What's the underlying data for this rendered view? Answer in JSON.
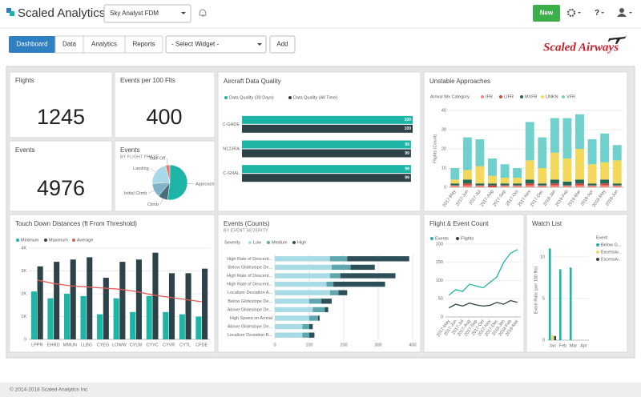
{
  "header": {
    "logo": "Scaled Analytics",
    "workspace": "Sky Analyst FDM",
    "new_button": "New",
    "help": "?"
  },
  "toolbar": {
    "tabs": [
      "Dashboard",
      "Data",
      "Analytics",
      "Reports"
    ],
    "widget_select": "- Select Widget -",
    "add_button": "Add",
    "brand": "Scaled Airways"
  },
  "kpis": [
    {
      "title": "Flights",
      "value": 1245
    },
    {
      "title": "Events per 100 Flts",
      "value": 400
    },
    {
      "title": "Events",
      "value": 4976
    }
  ],
  "charts": [
    {
      "type": "pie",
      "title": "Events",
      "subtitle": "BY FLIGHT PHASE",
      "categories": [
        "Take Off",
        "Landing",
        "Initial Climb",
        "Climb",
        "Approach"
      ],
      "values": [
        4,
        22,
        13,
        9,
        52
      ],
      "colors": [
        "#e8766d",
        "#a9d9e9",
        "#7fb3c8",
        "#4a6e7c",
        "#1fb5a6"
      ]
    },
    {
      "type": "bar",
      "orientation": "horizontal",
      "title": "Aircraft Data Quality",
      "data_labels": true,
      "categories": [
        "C-GADE",
        "N123RA",
        "C-GNAL"
      ],
      "series": [
        {
          "name": "Data Quality (30 Days)",
          "color": "#1db5a5",
          "values": [
            100,
            99,
            99
          ]
        },
        {
          "name": "Data Quality (All Time)",
          "color": "#2d4249",
          "values": [
            100,
            99,
            99
          ]
        }
      ],
      "xlim": [
        0,
        100
      ]
    },
    {
      "type": "bar",
      "stacked": true,
      "title": "Unstable Approaches",
      "legend_title": "Arrival Wx Category",
      "y_label": "Flights (Count)",
      "categories": [
        "2017-May",
        "2017-Jun",
        "2017-Jul",
        "2017-Aug",
        "2017-Sep",
        "2017-Oct",
        "2017-Nov",
        "2017-Dec",
        "2018-Jan",
        "2018-Feb",
        "2018-Mar",
        "2018-Apr",
        "2018-May",
        "2018-Jun"
      ],
      "series": [
        {
          "name": "IFR",
          "color": "#f08b80",
          "values": [
            1,
            1,
            1,
            0,
            1,
            1,
            1,
            1,
            1,
            1,
            1,
            1,
            1,
            1
          ]
        },
        {
          "name": "LIFR",
          "color": "#d9453b",
          "values": [
            0,
            1,
            0,
            1,
            0,
            0,
            1,
            0,
            1,
            0,
            1,
            0,
            1,
            0
          ]
        },
        {
          "name": "MVFR",
          "color": "#1f6b5a",
          "values": [
            1,
            2,
            1,
            1,
            1,
            1,
            2,
            1,
            2,
            2,
            2,
            1,
            2,
            1
          ]
        },
        {
          "name": "UNKN",
          "color": "#f2d95c",
          "values": [
            2,
            5,
            9,
            4,
            3,
            3,
            10,
            8,
            14,
            12,
            16,
            10,
            9,
            12
          ]
        },
        {
          "name": "VFR",
          "color": "#6fd0cc",
          "values": [
            6,
            17,
            14,
            9,
            7,
            5,
            20,
            16,
            18,
            21,
            18,
            13,
            15,
            8
          ]
        }
      ],
      "ylim": [
        0,
        40
      ],
      "yticks": [
        0,
        10,
        20,
        30,
        40
      ]
    },
    {
      "type": "bar",
      "title": "Touch Down Distances (ft From Threshold)",
      "categories": [
        "LPPR",
        "EHRD",
        "MMUN",
        "LLBG",
        "CYEG",
        "LOWW",
        "CYLW",
        "CYYC",
        "CYVR",
        "CYTL",
        "CFDE"
      ],
      "series": [
        {
          "name": "Minimum",
          "color": "#1db5a5",
          "values": [
            2100,
            1800,
            2000,
            1900,
            1100,
            1800,
            1200,
            1900,
            1200,
            1100,
            1000
          ]
        },
        {
          "name": "Maximum",
          "color": "#2d4249",
          "values": [
            3200,
            3400,
            3500,
            3600,
            2700,
            3400,
            3500,
            3800,
            2900,
            2900,
            3100
          ]
        },
        {
          "name": "Average",
          "color": "#e35b5b",
          "type": "line",
          "values": [
            2600,
            2450,
            2350,
            2300,
            2250,
            2200,
            2100,
            1950,
            1850,
            1750,
            1650
          ]
        }
      ],
      "ylim": [
        0,
        4000
      ],
      "yticks": [
        0,
        {
          "value": 1000,
          "label": "1K"
        },
        {
          "value": 2000,
          "label": "2K"
        },
        {
          "value": 3000,
          "label": "3K"
        },
        {
          "value": 4000,
          "label": "4K"
        }
      ]
    },
    {
      "type": "bar",
      "orientation": "horizontal",
      "stacked": true,
      "title": "Events (Counts)",
      "subtitle": "BY EVENT SEVERITY",
      "legend_title": "Severity",
      "categories": [
        "High Rate of Descent...",
        "Below Glideslope De...",
        "High Rate of Descent...",
        "High Rate of Descent...",
        "Localizer Deviation A...",
        "Below Glideslope De...",
        "Above Glideslope De...",
        "High Speed on Arrival",
        "Above Glideslope De...",
        "Localizer Deviation B..."
      ],
      "series": [
        {
          "name": "Low",
          "color": "#a9dbe6",
          "values": [
            160,
            165,
            160,
            150,
            160,
            100,
            110,
            100,
            80,
            80
          ]
        },
        {
          "name": "Medium",
          "color": "#5ea7ae",
          "values": [
            50,
            55,
            30,
            20,
            25,
            35,
            35,
            25,
            20,
            20
          ]
        },
        {
          "name": "High",
          "color": "#2d4f57",
          "values": [
            180,
            70,
            160,
            150,
            25,
            30,
            10,
            5,
            10,
            15
          ]
        }
      ],
      "xlim": [
        0,
        400
      ],
      "xticks": [
        0,
        100,
        200,
        300,
        400
      ]
    },
    {
      "type": "line",
      "title": "Flight & Event Count",
      "categories": [
        "2017-May",
        "2017-Jun",
        "2017-Jul",
        "2017-Aug",
        "2017-Sep",
        "2017-Oct",
        "2017-Nov",
        "2017-Dec",
        "2018-Jan",
        "2018-Feb",
        "2018-Mar"
      ],
      "series": [
        {
          "name": "Events",
          "color": "#1db5a5",
          "values": [
            60,
            75,
            70,
            90,
            85,
            80,
            95,
            110,
            150,
            175,
            185
          ]
        },
        {
          "name": "Flights",
          "color": "#2d4249",
          "values": [
            25,
            35,
            30,
            38,
            33,
            30,
            32,
            40,
            35,
            45,
            40
          ]
        }
      ],
      "ylim": [
        0,
        200
      ],
      "yticks": [
        0,
        50,
        100,
        150,
        200
      ]
    },
    {
      "type": "bar",
      "title": "Watch List",
      "legend_title": "Event",
      "y_label": "Event Rate (per 100 flts)",
      "categories": [
        "Jan",
        "Feb",
        "Mar",
        "Apr"
      ],
      "series": [
        {
          "name": "Below G...",
          "color": "#1db5a5",
          "values": [
            11,
            8.5,
            8.7,
            0
          ]
        },
        {
          "name": "Excessiv...",
          "color": "#f2d95c",
          "values": [
            0.6,
            0,
            0,
            0
          ]
        },
        {
          "name": "Excessiv...",
          "color": "#2d4249",
          "values": [
            0.5,
            0,
            0,
            0
          ]
        }
      ],
      "ylim": [
        0,
        12
      ],
      "yticks": [
        0,
        5,
        10
      ]
    }
  ],
  "footer": "© 2014-2018 Scaled Analytics Inc"
}
